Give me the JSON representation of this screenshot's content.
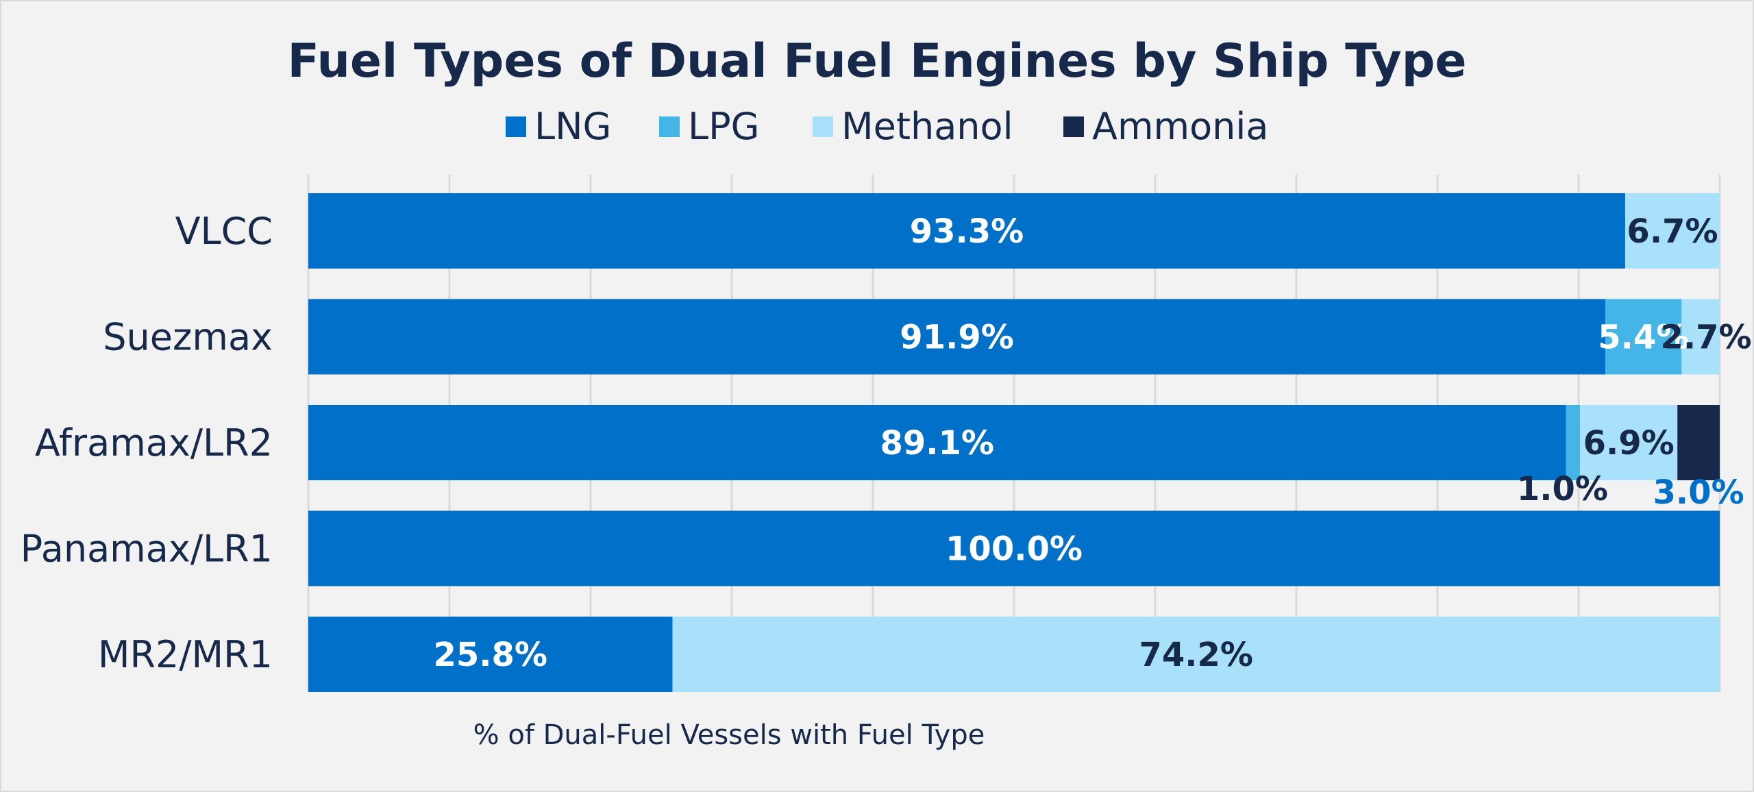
{
  "chart_data": {
    "type": "bar",
    "orientation": "horizontal",
    "stacked": true,
    "title": "Fuel Types of Dual Fuel Engines by Ship Type",
    "xlabel": "% of Dual-Fuel Vessels with Fuel Type",
    "ylabel": "",
    "xlim": [
      0,
      100
    ],
    "grid": true,
    "legend_position": "top",
    "categories": [
      "VLCC",
      "Suezmax",
      "Aframax/LR2",
      "Panamax/LR1",
      "MR2/MR1"
    ],
    "series": [
      {
        "name": "LNG",
        "color": "#0070c8",
        "values": [
          93.3,
          91.9,
          89.1,
          100.0,
          25.8
        ],
        "labels": [
          "93.3%",
          "91.9%",
          "89.1%",
          "100.0%",
          "25.8%"
        ]
      },
      {
        "name": "LPG",
        "color": "#45b5e8",
        "values": [
          0,
          5.4,
          1.0,
          0,
          0
        ],
        "labels": [
          "",
          "5.4%",
          "1.0%",
          "",
          ""
        ]
      },
      {
        "name": "Methanol",
        "color": "#a9e1fa",
        "values": [
          6.7,
          2.7,
          6.9,
          0,
          74.2
        ],
        "labels": [
          "6.7%",
          "2.7%",
          "6.9%",
          "",
          "74.2%"
        ]
      },
      {
        "name": "Ammonia",
        "color": "#16294a",
        "values": [
          0,
          0,
          3.0,
          0,
          0
        ],
        "labels": [
          "",
          "",
          "3.0%",
          "",
          ""
        ]
      }
    ]
  }
}
